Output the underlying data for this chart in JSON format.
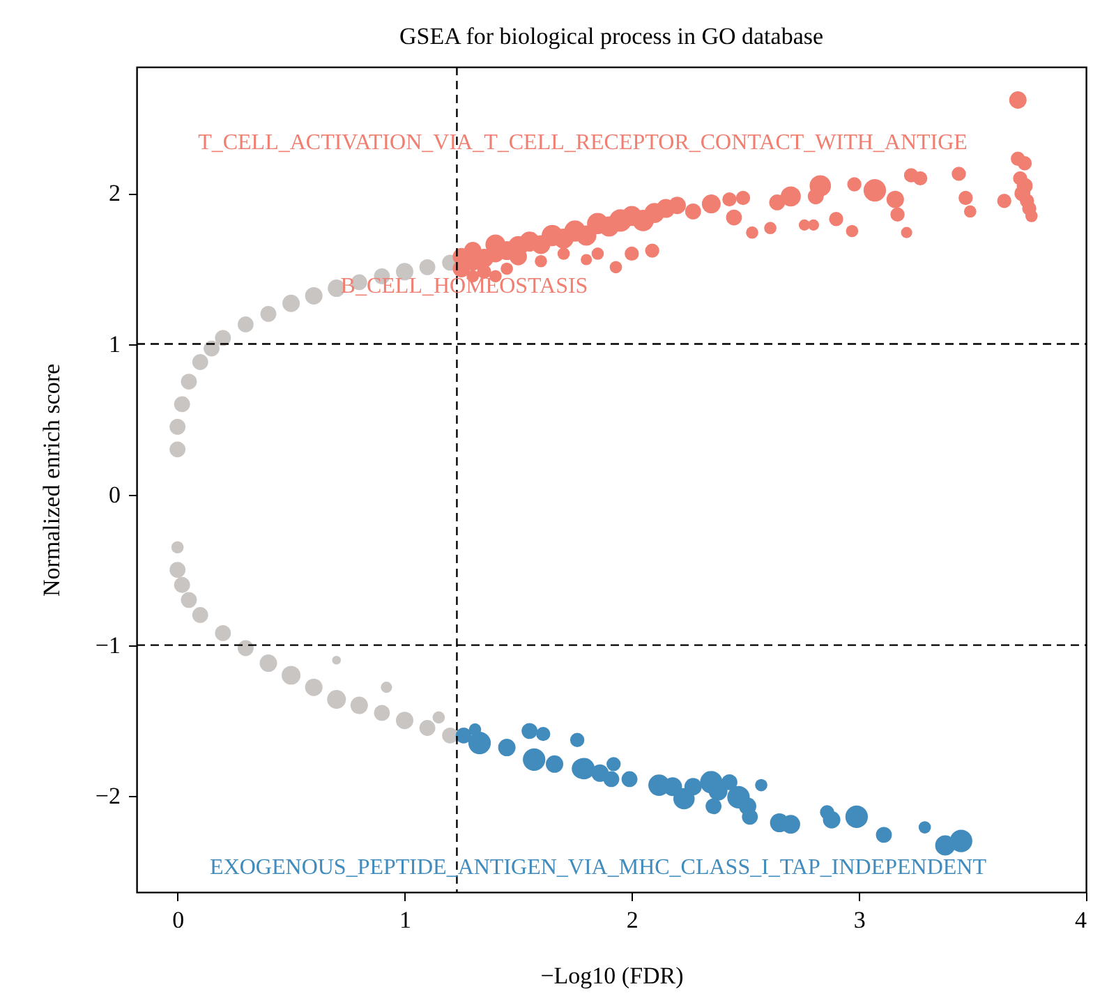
{
  "chart_data": {
    "type": "bubble",
    "title": "GSEA for biological process in GO database",
    "xlabel": "−Log10 (FDR)",
    "ylabel": "Normalized enrich score",
    "xlim": [
      -0.18,
      4.0
    ],
    "ylim": [
      -2.64,
      2.84
    ],
    "xticks": [
      0,
      1,
      2,
      3,
      4
    ],
    "yticks": [
      -2,
      -1,
      0,
      1,
      2
    ],
    "grid": false,
    "legend": false,
    "ref_lines": [
      {
        "axis": "x",
        "value": 1.23,
        "color": "#000000",
        "line_style": "dashed"
      },
      {
        "axis": "y",
        "value": 1,
        "color": "#000000",
        "line_style": "dashed"
      },
      {
        "axis": "y",
        "value": -1,
        "color": "#000000",
        "line_style": "dashed"
      }
    ],
    "annotations": [
      "T_CELL_ACTIVATION_VIA_T_CELL_RECEPTOR_CONTACT_WITH_ANTIGE",
      "B_CELL_HOMEOSTASIS",
      "EXOGENOUS_PEPTIDE_ANTIGEN_VIA_MHC_CLASS_I_TAP_INDEPENDENT"
    ],
    "series": [
      {
        "type": "bubble",
        "color": "#c9c5c3",
        "x": [
          0.0,
          0.0,
          0.02,
          0.05,
          0.1,
          0.15,
          0.2,
          0.3,
          0.4,
          0.5,
          0.6,
          0.7,
          0.8,
          0.9,
          1.0,
          1.1,
          1.2,
          0.0,
          0.0,
          0.02,
          0.05,
          0.1,
          0.2,
          0.3,
          0.4,
          0.5,
          0.6,
          0.7,
          0.8,
          0.9,
          1.0,
          1.1,
          1.2,
          0.7,
          0.92,
          1.15
        ],
        "values": [
          0.3,
          0.45,
          0.6,
          0.75,
          0.88,
          0.97,
          1.04,
          1.13,
          1.2,
          1.27,
          1.32,
          1.37,
          1.41,
          1.45,
          1.48,
          1.51,
          1.54,
          -0.35,
          -0.5,
          -0.6,
          -0.7,
          -0.8,
          -0.92,
          -1.02,
          -1.12,
          -1.2,
          -1.28,
          -1.36,
          -1.4,
          -1.45,
          -1.5,
          -1.55,
          -1.6,
          -1.1,
          -1.28,
          -1.48
        ],
        "sizes": [
          0.5,
          0.5,
          0.5,
          0.5,
          0.5,
          0.5,
          0.5,
          0.5,
          0.5,
          0.6,
          0.6,
          0.6,
          0.5,
          0.5,
          0.6,
          0.5,
          0.5,
          0.3,
          0.5,
          0.5,
          0.5,
          0.5,
          0.5,
          0.5,
          0.6,
          0.7,
          0.6,
          0.7,
          0.6,
          0.5,
          0.6,
          0.5,
          0.5,
          0.15,
          0.25,
          0.3
        ]
      },
      {
        "type": "bubble",
        "color": "#f07f72",
        "x": [
          1.25,
          1.25,
          1.3,
          1.3,
          1.35,
          1.4,
          1.4,
          1.45,
          1.5,
          1.5,
          1.55,
          1.6,
          1.65,
          1.7,
          1.75,
          1.8,
          1.85,
          1.9,
          1.95,
          2.0,
          2.05,
          2.1,
          2.15,
          2.2,
          1.35,
          1.45,
          1.6,
          1.7,
          1.8,
          1.85,
          1.3,
          1.4,
          1.93,
          2.0,
          2.09,
          2.27,
          2.35,
          2.43,
          2.45,
          2.49,
          2.53,
          2.61,
          2.64,
          2.7,
          2.76,
          2.8,
          2.81,
          2.83,
          2.9,
          2.97,
          2.98,
          3.07,
          3.16,
          3.17,
          3.21,
          3.23,
          3.27,
          3.44,
          3.47,
          3.49,
          3.64,
          3.7,
          3.7,
          3.73,
          3.71,
          3.72,
          3.74,
          3.75,
          3.76,
          3.73
        ],
        "values": [
          1.5,
          1.58,
          1.55,
          1.62,
          1.57,
          1.6,
          1.66,
          1.62,
          1.65,
          1.58,
          1.68,
          1.66,
          1.72,
          1.7,
          1.75,
          1.72,
          1.8,
          1.78,
          1.82,
          1.85,
          1.82,
          1.87,
          1.9,
          1.92,
          1.48,
          1.5,
          1.55,
          1.6,
          1.56,
          1.6,
          1.45,
          1.45,
          1.51,
          1.6,
          1.62,
          1.88,
          1.93,
          1.96,
          1.84,
          1.97,
          1.74,
          1.77,
          1.94,
          1.98,
          1.79,
          1.79,
          1.98,
          2.05,
          1.83,
          1.75,
          2.06,
          2.02,
          1.96,
          1.86,
          1.74,
          2.12,
          2.1,
          2.13,
          1.97,
          1.88,
          1.95,
          2.62,
          2.23,
          2.2,
          2.1,
          2.0,
          1.95,
          1.9,
          1.85,
          2.05
        ],
        "sizes": [
          0.6,
          0.6,
          0.7,
          0.6,
          0.7,
          0.6,
          0.8,
          0.7,
          0.8,
          0.6,
          0.8,
          0.7,
          0.9,
          0.8,
          0.9,
          0.8,
          0.9,
          0.8,
          1,
          0.8,
          0.9,
          0.8,
          0.7,
          0.6,
          0.4,
          0.3,
          0.3,
          0.3,
          0.25,
          0.3,
          0.3,
          0.3,
          0.3,
          0.4,
          0.4,
          0.5,
          0.7,
          0.4,
          0.5,
          0.4,
          0.3,
          0.3,
          0.5,
          0.8,
          0.25,
          0.25,
          0.5,
          0.9,
          0.4,
          0.3,
          0.4,
          1,
          0.6,
          0.4,
          0.25,
          0.4,
          0.4,
          0.4,
          0.4,
          0.3,
          0.4,
          0.6,
          0.4,
          0.4,
          0.4,
          0.5,
          0.4,
          0.4,
          0.3,
          0.5
        ]
      },
      {
        "type": "bubble",
        "color": "#418bbd",
        "x": [
          1.26,
          1.31,
          1.33,
          1.45,
          1.55,
          1.57,
          1.61,
          1.66,
          1.76,
          1.79,
          1.78,
          1.86,
          1.92,
          1.91,
          1.99,
          2.12,
          2.18,
          2.23,
          2.27,
          2.35,
          2.38,
          2.36,
          2.43,
          2.47,
          2.51,
          2.52,
          2.57,
          2.65,
          2.7,
          2.86,
          2.88,
          2.99,
          3.11,
          3.29,
          3.38,
          3.45
        ],
        "values": [
          -1.6,
          -1.56,
          -1.65,
          -1.68,
          -1.57,
          -1.76,
          -1.59,
          -1.79,
          -1.63,
          -1.82,
          -1.82,
          -1.85,
          -1.79,
          -1.89,
          -1.89,
          -1.93,
          -1.94,
          -2.02,
          -1.94,
          -1.91,
          -1.97,
          -2.07,
          -1.91,
          -2.01,
          -2.07,
          -2.14,
          -1.93,
          -2.18,
          -2.19,
          -2.11,
          -2.16,
          -2.14,
          -2.26,
          -2.21,
          -2.33,
          -2.3
        ],
        "sizes": [
          0.5,
          0.3,
          1,
          0.6,
          0.5,
          1,
          0.4,
          0.6,
          0.4,
          0.9,
          0.8,
          0.6,
          0.4,
          0.5,
          0.5,
          0.9,
          0.7,
          0.9,
          0.6,
          1,
          0.7,
          0.5,
          0.5,
          1,
          0.6,
          0.5,
          0.3,
          0.7,
          0.7,
          0.4,
          0.6,
          1,
          0.5,
          0.3,
          0.8,
          1
        ]
      }
    ]
  }
}
